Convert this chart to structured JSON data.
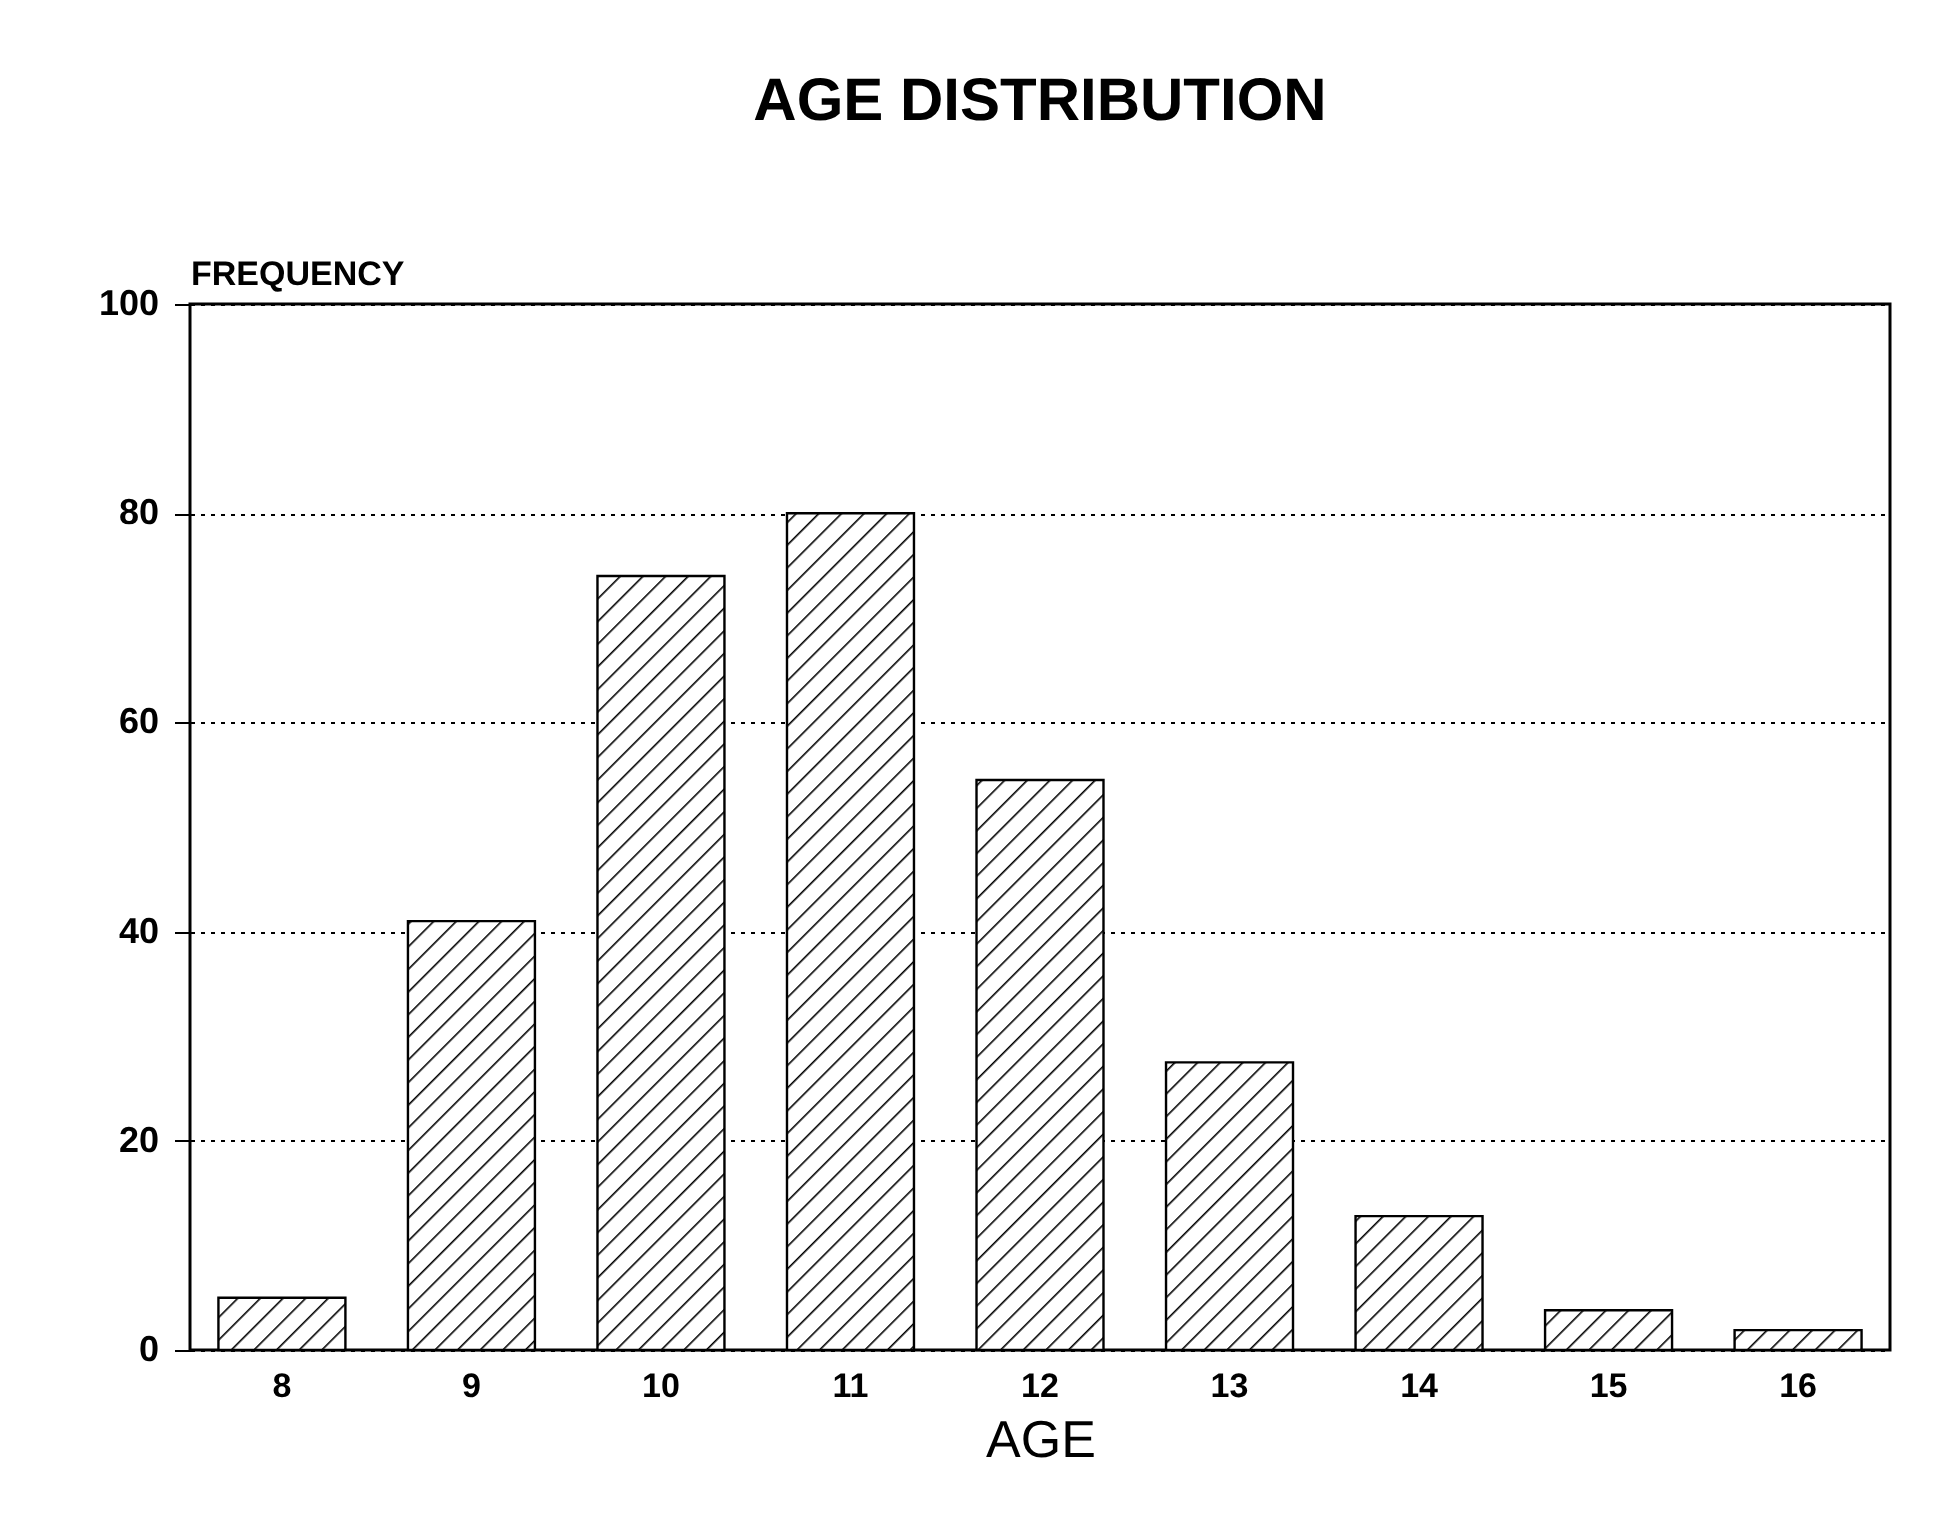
{
  "chart_data": {
    "type": "bar",
    "title": "AGE DISTRIBUTION",
    "xlabel": "AGE",
    "ylabel": "FREQUENCY",
    "categories": [
      "8",
      "9",
      "10",
      "11",
      "12",
      "13",
      "14",
      "15",
      "16"
    ],
    "values": [
      5,
      41,
      74,
      80,
      54.5,
      27.5,
      12.8,
      3.8,
      1.9
    ],
    "color": "#000000",
    "ylim": [
      0,
      100
    ],
    "yticks": [
      0,
      20,
      40,
      60,
      80,
      100
    ],
    "grid": "y"
  }
}
